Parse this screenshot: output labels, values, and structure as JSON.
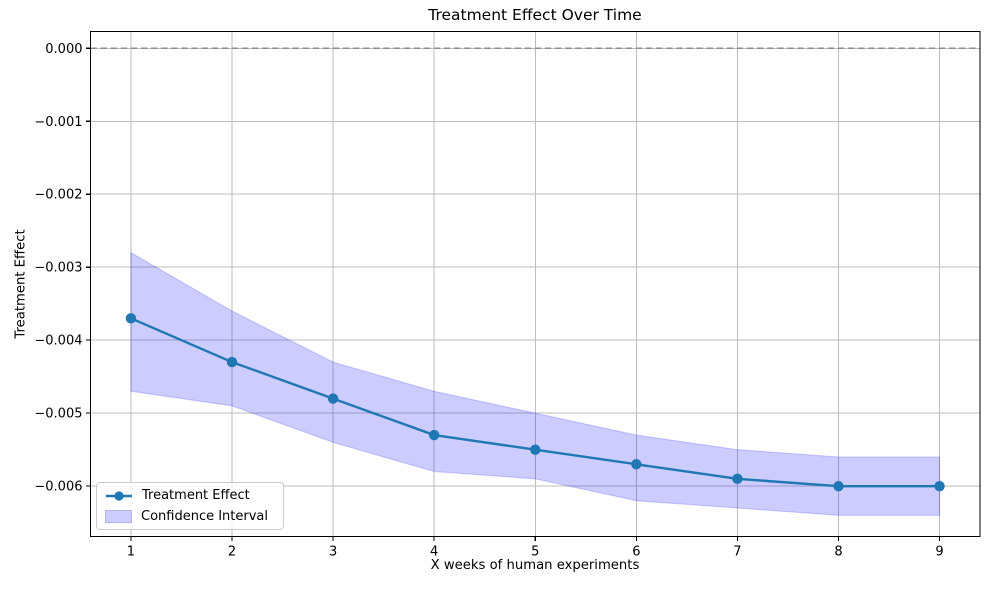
{
  "chart_data": {
    "type": "line",
    "title": "Treatment Effect Over Time",
    "xlabel": "X weeks of human experiments",
    "ylabel": "Treatment Effect",
    "x": [
      1,
      2,
      3,
      4,
      5,
      6,
      7,
      8,
      9
    ],
    "series": [
      {
        "name": "Treatment Effect",
        "type": "line",
        "color": "#1f77b4",
        "marker": "circle",
        "values": [
          -0.0037,
          -0.0043,
          -0.0048,
          -0.0053,
          -0.0055,
          -0.0057,
          -0.0059,
          -0.006,
          -0.006
        ]
      },
      {
        "name": "Confidence Interval",
        "type": "band",
        "color": "#0000ff",
        "fill_opacity": 0.2,
        "upper": [
          -0.0028,
          -0.0036,
          -0.0043,
          -0.0047,
          -0.005,
          -0.0053,
          -0.0055,
          -0.0056,
          -0.0056
        ],
        "lower": [
          -0.0047,
          -0.0049,
          -0.0054,
          -0.0058,
          -0.0059,
          -0.0062,
          -0.0063,
          -0.0064,
          -0.0064
        ]
      }
    ],
    "xlim": [
      0.6,
      9.4
    ],
    "ylim": [
      -0.00669,
      0.00023
    ],
    "xticks": {
      "values": [
        1,
        2,
        3,
        4,
        5,
        6,
        7,
        8,
        9
      ],
      "labels": [
        "1",
        "2",
        "3",
        "4",
        "5",
        "6",
        "7",
        "8",
        "9"
      ]
    },
    "yticks": {
      "values": [
        0,
        -0.001,
        -0.002,
        -0.003,
        -0.004,
        -0.005,
        -0.006
      ],
      "labels": [
        "0.000",
        "−0.001",
        "−0.002",
        "−0.003",
        "−0.004",
        "−0.005",
        "−0.006"
      ]
    },
    "grid": true,
    "grid_color": "#bdbdbd",
    "zero_line": {
      "value": 0,
      "style": "dashed",
      "color": "#8c8c8c"
    },
    "legend": {
      "position": "lower left",
      "entries": [
        "Treatment Effect",
        "Confidence Interval"
      ]
    }
  }
}
